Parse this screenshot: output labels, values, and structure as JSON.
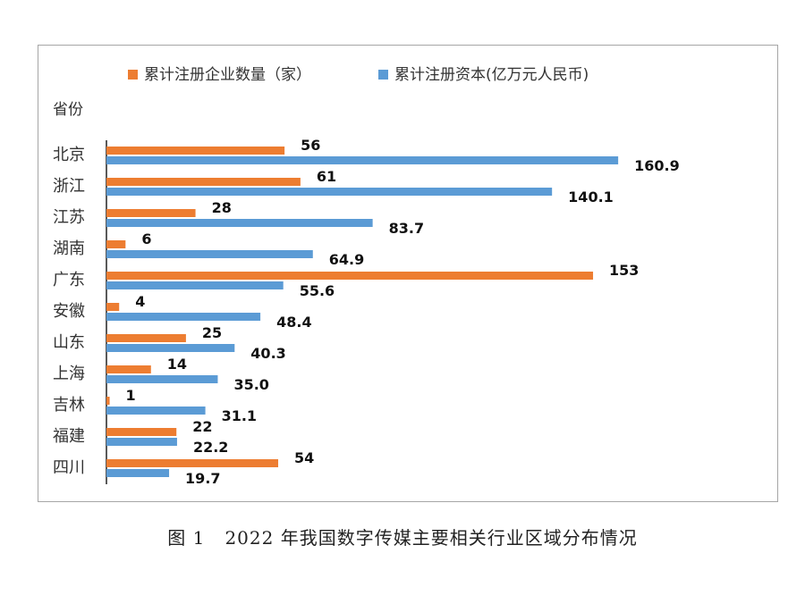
{
  "chart_data": {
    "type": "bar",
    "orientation": "horizontal",
    "y_axis_title": "省份",
    "categories": [
      "北京",
      "浙江",
      "江苏",
      "湖南",
      "广东",
      "安徽",
      "山东",
      "上海",
      "吉林",
      "福建",
      "四川"
    ],
    "series": [
      {
        "name": "累计注册企业数量（家）",
        "color": "#ed7d31",
        "values": [
          56,
          61,
          28,
          6,
          153,
          4,
          25,
          14,
          1,
          22,
          54
        ]
      },
      {
        "name": "累计注册资本(亿万元人民币)",
        "color": "#5b9bd5",
        "values": [
          160.9,
          140.1,
          83.7,
          64.9,
          55.6,
          48.4,
          40.3,
          35.0,
          31.1,
          22.2,
          19.7
        ],
        "labels": [
          "160.9",
          "140.1",
          "83.7",
          "64.9",
          "55.6",
          "48.4",
          "40.3",
          "35.0",
          "31.1",
          "22.2",
          "19.7"
        ]
      }
    ],
    "xlim": [
      0,
      165
    ],
    "grid": false,
    "legend_position": "top"
  },
  "caption": {
    "figure_label": "图 1",
    "text": "2022 年我国数字传媒主要相关行业区域分布情况"
  }
}
